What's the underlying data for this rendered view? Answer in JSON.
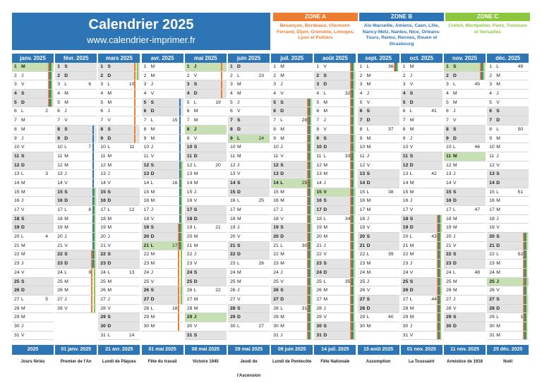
{
  "header": {
    "title": "Calendrier 2025",
    "site": "www.calendrier-imprimer.fr"
  },
  "zones": [
    {
      "title": "ZONE A",
      "text": "Besançon, Bordeaux, Clermont-Ferrand, Dijon, Grenoble, Limoges, Lyon et Poitiers",
      "color": "#ed7d31"
    },
    {
      "title": "ZONE B",
      "text": "Aix-Marseille, Amiens, Caen, Lille, Nancy-Metz, Nantes, Nice, Orléans-Tours, Reims, Rennes, Rouen et Strasbourg",
      "color": "#2e75b6"
    },
    {
      "title": "ZONE C",
      "text": "Créteil, Montpellier, Paris, Toulouse et Versailles",
      "color": "#8dc63f"
    }
  ],
  "months": [
    "janv. 2025",
    "févr. 2025",
    "mars 2025",
    "avr. 2025",
    "mai 2025",
    "juin 2025",
    "juil. 2025",
    "août 2025",
    "sept. 2025",
    "oct. 2025",
    "nov. 2025",
    "déc. 2025"
  ],
  "days_in_month": [
    31,
    28,
    31,
    30,
    31,
    30,
    31,
    31,
    30,
    31,
    30,
    31
  ],
  "first_weekday": [
    2,
    5,
    5,
    1,
    3,
    6,
    1,
    4,
    0,
    2,
    5,
    0
  ],
  "weekday_letters": [
    "L",
    "M",
    "M",
    "J",
    "V",
    "S",
    "D"
  ],
  "holidays": [
    [
      1
    ],
    [],
    [],
    [
      21
    ],
    [
      1,
      8,
      29
    ],
    [
      9
    ],
    [
      14
    ],
    [
      15
    ],
    [],
    [],
    [
      1,
      11
    ],
    [
      25
    ]
  ],
  "holiday_color": "#c6e0b4",
  "vacation_bars": {
    "A": {
      "color": "#ed7d31",
      "ranges": [
        [
          [
            1,
            5
          ]
        ],
        [
          [
            22,
            28
          ]
        ],
        [
          [
            1,
            9
          ]
        ],
        [
          [
            19,
            30
          ]
        ],
        [
          [
            1,
            4
          ]
        ],
        [],
        [
          [
            5,
            31
          ]
        ],
        [
          [
            1,
            31
          ]
        ],
        [
          [
            1,
            1
          ]
        ],
        [
          [
            18,
            31
          ]
        ],
        [
          [
            1,
            2
          ]
        ],
        [
          [
            20,
            31
          ]
        ]
      ]
    },
    "B": {
      "color": "#2e75b6",
      "ranges": [
        [
          [
            1,
            5
          ]
        ],
        [
          [
            8,
            23
          ]
        ],
        [],
        [
          [
            5,
            21
          ]
        ],
        [],
        [],
        [
          [
            5,
            31
          ]
        ],
        [
          [
            1,
            31
          ]
        ],
        [
          [
            1,
            1
          ]
        ],
        [
          [
            18,
            31
          ]
        ],
        [
          [
            1,
            2
          ]
        ],
        [
          [
            20,
            31
          ]
        ]
      ]
    },
    "C": {
      "color": "#8dc63f",
      "ranges": [
        [
          [
            1,
            5
          ]
        ],
        [
          [
            15,
            28
          ]
        ],
        [
          [
            1,
            2
          ]
        ],
        [
          [
            12,
            27
          ]
        ],
        [],
        [],
        [
          [
            5,
            31
          ]
        ],
        [
          [
            1,
            31
          ]
        ],
        [
          [
            1,
            1
          ]
        ],
        [
          [
            18,
            31
          ]
        ],
        [
          [
            1,
            2
          ]
        ],
        [
          [
            20,
            31
          ]
        ]
      ]
    }
  },
  "footer": [
    {
      "date": "2025",
      "name": "Jours fériés"
    },
    {
      "date": "01 janv. 2025",
      "name": "Premier de l'An"
    },
    {
      "date": "21 avr. 2025",
      "name": "Lundi de Pâques"
    },
    {
      "date": "01 mai 2025",
      "name": "Fête du travail"
    },
    {
      "date": "08 mai 2025",
      "name": "Victoire 1945"
    },
    {
      "date": "29 mai 2025",
      "name": "Jeudi de l'Ascension"
    },
    {
      "date": "09 juin 2025",
      "name": "Lundi de Pentecôte"
    },
    {
      "date": "14 juil. 2025",
      "name": "Fête Nationale"
    },
    {
      "date": "15 août 2025",
      "name": "Assomption"
    },
    {
      "date": "01 nov. 2025",
      "name": "La Toussaint"
    },
    {
      "date": "11 nov. 2025",
      "name": "Armistice de 1918"
    },
    {
      "date": "25 déc. 2025",
      "name": "Noël"
    }
  ]
}
